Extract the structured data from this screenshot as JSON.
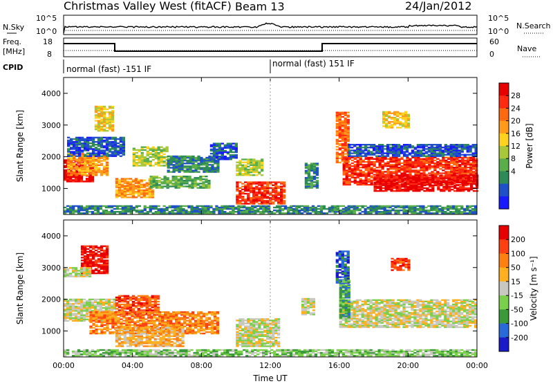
{
  "header": {
    "title": "Christmas Valley West (fitACF)",
    "beam": "Beam 13",
    "date": "24/Jan/2012"
  },
  "top_panels": {
    "sky": {
      "left_label": "N.Sky",
      "right_label": "N.Search",
      "left_ticks": [
        "10^5",
        "10^0"
      ],
      "right_ticks": [
        "10^5",
        "10^0"
      ]
    },
    "freq": {
      "left_label_1": "Freq.",
      "left_label_2": "[MHz]",
      "right_label": "Nave",
      "left_ticks": [
        "18",
        "8"
      ],
      "right_ticks": [
        "60",
        "0"
      ]
    },
    "cpid": {
      "label": "CPID",
      "segments": [
        {
          "text": "normal (fast) -151 IF",
          "start_hour": 0
        },
        {
          "text": "normal (fast) 151 IF",
          "start_hour": 12
        }
      ]
    }
  },
  "chart_data": [
    {
      "type": "heatmap",
      "name": "power-panel",
      "xlabel": "",
      "ylabel": "Slant Range [km]",
      "xlim": [
        0,
        24
      ],
      "ylim": [
        180,
        4500
      ],
      "yticks": [
        1000,
        2000,
        3000,
        4000
      ],
      "colorbar": {
        "label": "Power [dB]",
        "ticks": [
          "4",
          "8",
          "12",
          "16",
          "20",
          "24",
          "28"
        ],
        "colors": [
          "#1a1aff",
          "#2050c8",
          "#2e8b57",
          "#5aae4a",
          "#a8c83a",
          "#ffd21e",
          "#ff9a1a",
          "#ff6a10",
          "#ff2a10",
          "#e80000"
        ]
      },
      "regions": [
        {
          "t0": 0.0,
          "t1": 1.6,
          "r0": 1200,
          "r1": 1900,
          "level": 9
        },
        {
          "t0": 0.2,
          "t1": 2.5,
          "r0": 1400,
          "r1": 2100,
          "level": 6
        },
        {
          "t0": 0.2,
          "t1": 3.5,
          "r0": 2000,
          "r1": 2600,
          "level": 1
        },
        {
          "t0": 1.8,
          "t1": 2.8,
          "r0": 2800,
          "r1": 3600,
          "level": 5
        },
        {
          "t0": 3.0,
          "t1": 5.2,
          "r0": 700,
          "r1": 1300,
          "level": 6
        },
        {
          "t0": 4.0,
          "t1": 6.0,
          "r0": 1700,
          "r1": 2300,
          "level": 4
        },
        {
          "t0": 6.0,
          "t1": 9.0,
          "r0": 1500,
          "r1": 2000,
          "level": 2
        },
        {
          "t0": 5.0,
          "t1": 8.5,
          "r0": 1000,
          "r1": 1400,
          "level": 3
        },
        {
          "t0": 8.5,
          "t1": 10.0,
          "r0": 1900,
          "r1": 2400,
          "level": 1
        },
        {
          "t0": 10.0,
          "t1": 12.8,
          "r0": 500,
          "r1": 1200,
          "level": 8
        },
        {
          "t0": 10.0,
          "t1": 11.5,
          "r0": 1400,
          "r1": 1900,
          "level": 4
        },
        {
          "t0": 14.0,
          "t1": 14.8,
          "r0": 1000,
          "r1": 1800,
          "level": 2
        },
        {
          "t0": 15.8,
          "t1": 16.6,
          "r0": 1800,
          "r1": 3400,
          "level": 7
        },
        {
          "t0": 16.2,
          "t1": 24.0,
          "r0": 1100,
          "r1": 2000,
          "level": 8
        },
        {
          "t0": 18.0,
          "t1": 24.0,
          "r0": 900,
          "r1": 1400,
          "level": 9
        },
        {
          "t0": 16.5,
          "t1": 24.0,
          "r0": 2000,
          "r1": 2400,
          "level": 1
        },
        {
          "t0": 18.5,
          "t1": 20.0,
          "r0": 2900,
          "r1": 3400,
          "level": 5
        },
        {
          "t0": 0.0,
          "t1": 24.0,
          "r0": 200,
          "r1": 450,
          "level": 2
        }
      ]
    },
    {
      "type": "heatmap",
      "name": "velocity-panel",
      "xlabel": "Time UT",
      "ylabel": "Slant Range [km]",
      "xlim": [
        0,
        24
      ],
      "ylim": [
        180,
        4500
      ],
      "xticks": [
        "00:00",
        "04:00",
        "08:00",
        "12:00",
        "16:00",
        "20:00",
        "00:00"
      ],
      "yticks": [
        1000,
        2000,
        3000,
        4000
      ],
      "colorbar": {
        "label": "Velocity [m s⁻¹]",
        "ticks": [
          "200",
          "100",
          "50",
          "15",
          "-15",
          "-50",
          "-100",
          "-200"
        ],
        "colors": [
          "#1a1ac8",
          "#2a6ad8",
          "#3a9a3a",
          "#7ad04a",
          "#c8c8c0",
          "#ffb020",
          "#ff8010",
          "#ff4010",
          "#e80000"
        ]
      },
      "regions": [
        {
          "t0": 0.0,
          "t1": 3.0,
          "r0": 1300,
          "r1": 2000,
          "level": 4
        },
        {
          "t0": 1.0,
          "t1": 2.5,
          "r0": 2800,
          "r1": 3700,
          "level": 8
        },
        {
          "t0": 0.0,
          "t1": 1.5,
          "r0": 2700,
          "r1": 3000,
          "level": 4
        },
        {
          "t0": 3.0,
          "t1": 5.5,
          "r0": 1500,
          "r1": 2100,
          "level": 7
        },
        {
          "t0": 1.5,
          "t1": 9.0,
          "r0": 900,
          "r1": 1600,
          "level": 6
        },
        {
          "t0": 3.0,
          "t1": 7.0,
          "r0": 500,
          "r1": 1100,
          "level": 5
        },
        {
          "t0": 10.0,
          "t1": 12.5,
          "r0": 500,
          "r1": 1400,
          "level": 4
        },
        {
          "t0": 13.8,
          "t1": 14.6,
          "r0": 1500,
          "r1": 2000,
          "level": 4
        },
        {
          "t0": 15.8,
          "t1": 16.5,
          "r0": 2500,
          "r1": 3500,
          "level": 1
        },
        {
          "t0": 16.0,
          "t1": 24.0,
          "r0": 1100,
          "r1": 2000,
          "level": 4
        },
        {
          "t0": 16.0,
          "t1": 16.6,
          "r0": 1400,
          "r1": 2600,
          "level": 2
        },
        {
          "t0": 19.0,
          "t1": 20.0,
          "r0": 2900,
          "r1": 3300,
          "level": 7
        },
        {
          "t0": 0.0,
          "t1": 24.0,
          "r0": 200,
          "r1": 400,
          "level": 3
        }
      ]
    }
  ]
}
